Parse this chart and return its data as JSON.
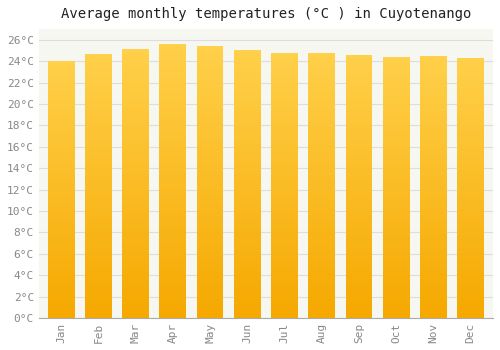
{
  "title": "Average monthly temperatures (°C ) in Cuyotenango",
  "months": [
    "Jan",
    "Feb",
    "Mar",
    "Apr",
    "May",
    "Jun",
    "Jul",
    "Aug",
    "Sep",
    "Oct",
    "Nov",
    "Dec"
  ],
  "values": [
    24.0,
    24.7,
    25.1,
    25.6,
    25.4,
    25.0,
    24.8,
    24.8,
    24.6,
    24.4,
    24.5,
    24.3
  ],
  "bar_color_top": "#FFD04A",
  "bar_color_bottom": "#F5A800",
  "ylim": [
    0,
    27
  ],
  "yticks": [
    0,
    2,
    4,
    6,
    8,
    10,
    12,
    14,
    16,
    18,
    20,
    22,
    24,
    26
  ],
  "background_color": "#FFFFFF",
  "plot_bg_color": "#F7F7F2",
  "grid_color": "#DDDDDD",
  "title_fontsize": 10,
  "tick_fontsize": 8,
  "tick_color": "#888888",
  "bar_width": 0.72
}
